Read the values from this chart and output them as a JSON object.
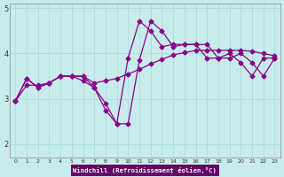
{
  "background_color": "#c8ecec",
  "grid_color": "#aadddd",
  "line_color": "#880088",
  "xlabel": "Windchill (Refroidissement éolien,°C)",
  "xlabel_bg": "#660066",
  "xlim": [
    -0.5,
    23.5
  ],
  "ylim": [
    1.7,
    5.1
  ],
  "yticks": [
    2,
    3,
    4,
    5
  ],
  "xticks": [
    0,
    1,
    2,
    3,
    4,
    5,
    6,
    7,
    8,
    9,
    10,
    11,
    12,
    13,
    14,
    15,
    16,
    17,
    18,
    19,
    20,
    21,
    22,
    23
  ],
  "line1_x": [
    0,
    1,
    2,
    3,
    4,
    5,
    6,
    7,
    8,
    9,
    10,
    11,
    12,
    13,
    14,
    15,
    16,
    17,
    18,
    19,
    20,
    21,
    22,
    23
  ],
  "line1_y": [
    2.95,
    3.45,
    3.25,
    3.35,
    3.5,
    3.5,
    3.5,
    3.25,
    2.75,
    2.45,
    2.45,
    3.85,
    4.72,
    4.5,
    4.15,
    4.2,
    4.2,
    4.2,
    3.9,
    3.9,
    4.0,
    3.8,
    3.5,
    3.9
  ],
  "line2_x": [
    0,
    1,
    2,
    3,
    4,
    5,
    6,
    7,
    8,
    9,
    10,
    11,
    12,
    13,
    14,
    15,
    16,
    17,
    18,
    19,
    20,
    21,
    22,
    23
  ],
  "line2_y": [
    2.95,
    3.3,
    3.3,
    3.35,
    3.5,
    3.5,
    3.5,
    3.35,
    3.4,
    3.45,
    3.55,
    3.65,
    3.77,
    3.87,
    3.97,
    4.02,
    4.07,
    4.07,
    4.07,
    4.07,
    4.07,
    4.05,
    4.0,
    3.95
  ],
  "line3_x": [
    0,
    1,
    2,
    3,
    4,
    5,
    6,
    7,
    8,
    9,
    10,
    11,
    12,
    13,
    14,
    15,
    16,
    17,
    18,
    19,
    20,
    21,
    22,
    23
  ],
  "line3_y": [
    2.95,
    3.45,
    3.25,
    3.35,
    3.5,
    3.5,
    3.4,
    3.25,
    2.9,
    2.45,
    3.9,
    4.72,
    4.5,
    4.15,
    4.2,
    4.2,
    4.2,
    3.9,
    3.9,
    4.0,
    3.8,
    3.5,
    3.9,
    3.9
  ]
}
